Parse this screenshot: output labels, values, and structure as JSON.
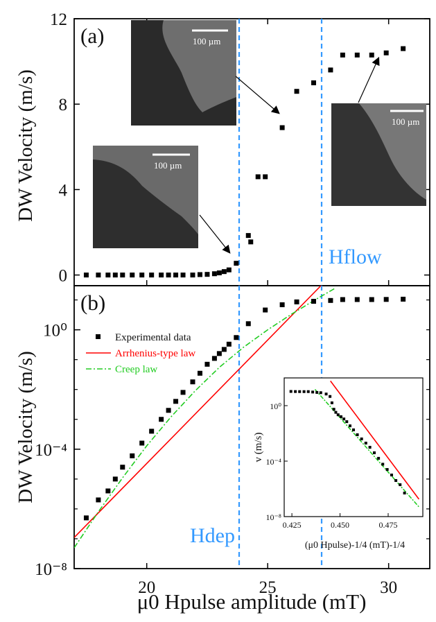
{
  "figure": {
    "xlabel": "μ0 Hpulse amplitude (mT)",
    "ylabel_a": "DW Velocity (m/s)",
    "ylabel_b": "DW Velocity (m/s)"
  },
  "annotations": {
    "hflow_label": "Hflow",
    "hdep_label": "Hdep",
    "hdep_value": 23.7,
    "hflow_value": 27.1,
    "scale_bar": "100 µm"
  },
  "colors": {
    "data": "#000000",
    "arrhenius": "#ff0000",
    "creep": "#22cc22",
    "vline": "#3399ff",
    "accent": "#3399ff"
  },
  "chart_data": [
    {
      "type": "scatter",
      "panel_label": "(a)",
      "xlim": [
        17,
        31.7
      ],
      "ylim": [
        -0.5,
        12
      ],
      "yticks": [
        0,
        4,
        8,
        12
      ],
      "series": [
        {
          "marker": "square",
          "x": [
            17.5,
            18.0,
            18.4,
            18.7,
            19.0,
            19.4,
            19.8,
            20.2,
            20.6,
            20.9,
            21.2,
            21.5,
            21.9,
            22.2,
            22.5,
            22.8,
            23.0,
            23.2,
            23.4,
            23.7,
            24.2,
            24.3,
            24.6,
            24.9,
            25.6,
            26.2,
            26.9,
            27.6,
            28.1,
            28.7,
            29.3,
            29.9,
            30.6
          ],
          "y": [
            0,
            0,
            0,
            0,
            0,
            0,
            0,
            0,
            0,
            0,
            0,
            0,
            0,
            0.02,
            0.03,
            0.06,
            0.1,
            0.16,
            0.24,
            0.55,
            1.85,
            1.55,
            4.6,
            4.6,
            6.9,
            8.6,
            9.0,
            9.6,
            10.3,
            10.3,
            10.3,
            10.4,
            10.6
          ]
        }
      ]
    },
    {
      "type": "line",
      "panel_label": "(b)",
      "yscale": "log",
      "xlim": [
        17,
        31.7
      ],
      "ylim": [
        1e-08,
        30
      ],
      "xticks": [
        20,
        25,
        30
      ],
      "yticks": [
        1e-08,
        0.0001,
        1
      ],
      "ytick_labels": [
        "10⁻⁸",
        "10⁻⁴",
        "10⁰"
      ],
      "legend": [
        "Experimental data",
        "Arrhenius-type law",
        "Creep law"
      ],
      "legend_position": "top-left",
      "series": [
        {
          "name": "Experimental data",
          "marker": "square",
          "x": [
            17.5,
            18.0,
            18.4,
            18.7,
            19.0,
            19.4,
            19.8,
            20.2,
            20.6,
            20.9,
            21.2,
            21.5,
            21.9,
            22.2,
            22.5,
            22.8,
            23.0,
            23.2,
            23.4,
            23.7,
            24.2,
            24.9,
            25.6,
            26.2,
            26.9,
            27.6,
            28.1,
            28.7,
            29.3,
            29.9,
            30.6
          ],
          "y": [
            5e-07,
            2e-06,
            4e-06,
            1e-05,
            2.5e-05,
            6e-05,
            0.00016,
            0.0004,
            0.001,
            0.002,
            0.004,
            0.008,
            0.018,
            0.035,
            0.07,
            0.11,
            0.16,
            0.22,
            0.33,
            0.55,
            1.6,
            4.6,
            6.9,
            8.6,
            9.0,
            9.6,
            10.3,
            10.3,
            10.3,
            10.4,
            10.6
          ]
        },
        {
          "name": "Arrhenius-type law",
          "x": [
            17.0,
            27.2
          ],
          "y": [
            1.1e-07,
            30
          ]
        },
        {
          "name": "Creep law",
          "x": [
            17.0,
            18.0,
            19.0,
            20.0,
            21.0,
            22.0,
            23.0,
            24.0,
            25.0,
            26.0,
            27.0,
            27.8
          ],
          "y": [
            5e-08,
            8e-07,
            1.1e-05,
            0.00013,
            0.0012,
            0.009,
            0.055,
            0.26,
            1.0,
            3.4,
            10.5,
            25
          ]
        }
      ]
    },
    {
      "type": "line",
      "inset": true,
      "yscale": "log",
      "xlabel": "(μ0 Hpulse)-1/4 (mT)-1/4",
      "ylabel": "v (m/s)",
      "xlim": [
        0.421,
        0.493
      ],
      "ylim": [
        1e-08,
        100
      ],
      "xticks": [
        0.425,
        0.45,
        0.475
      ],
      "xtick_labels": [
        "0.425",
        "0.450",
        "0.475"
      ],
      "yticks": [
        1e-08,
        0.0001,
        1
      ],
      "ytick_labels": [
        "10⁻⁸",
        "10⁻⁴",
        "10⁰"
      ],
      "series": [
        {
          "name": "Experimental data",
          "marker": "square",
          "x": [
            0.4245,
            0.4268,
            0.429,
            0.4313,
            0.4335,
            0.4358,
            0.438,
            0.44,
            0.4428,
            0.4448,
            0.4458,
            0.4468,
            0.4478,
            0.449,
            0.4505,
            0.452,
            0.4535,
            0.4552,
            0.457,
            0.459,
            0.4612,
            0.4634,
            0.4655,
            0.4678,
            0.47,
            0.4722,
            0.4745,
            0.4768,
            0.479,
            0.4812,
            0.4835
          ],
          "y": [
            10.6,
            10.4,
            10.3,
            10.3,
            10.3,
            9.6,
            9.0,
            8.6,
            6.9,
            4.6,
            1.6,
            0.55,
            0.33,
            0.22,
            0.16,
            0.11,
            0.07,
            0.035,
            0.018,
            0.008,
            0.004,
            0.002,
            0.001,
            0.0004,
            0.00016,
            6e-05,
            2.5e-05,
            1e-05,
            4e-06,
            2e-06,
            5e-07
          ]
        },
        {
          "name": "Arrhenius-type law",
          "x": [
            0.445,
            0.491
          ],
          "y": [
            60,
            1.8e-07
          ]
        },
        {
          "name": "Creep law",
          "x": [
            0.437,
            0.491
          ],
          "y": [
            15,
            5e-08
          ]
        }
      ]
    }
  ]
}
